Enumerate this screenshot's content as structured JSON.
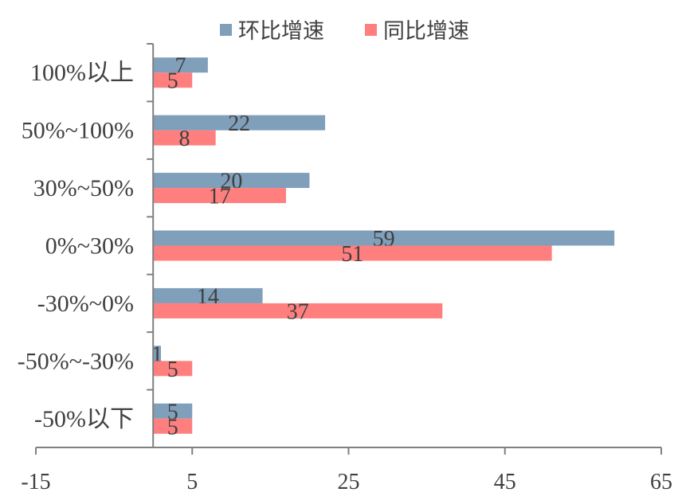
{
  "chart_data": {
    "type": "bar",
    "orientation": "horizontal",
    "categories": [
      "100%以上",
      "50%~100%",
      "30%~50%",
      "0%~30%",
      "-30%~0%",
      "-50%~-30%",
      "-50%以下"
    ],
    "series": [
      {
        "name": "环比增速",
        "values": [
          7,
          22,
          20,
          59,
          14,
          1,
          5
        ],
        "color": "#7f9fba"
      },
      {
        "name": "同比增速",
        "values": [
          5,
          8,
          17,
          51,
          37,
          5,
          5
        ],
        "color": "#ff7f7f"
      }
    ],
    "xlim": [
      -15,
      65
    ],
    "xticks": [
      "-15",
      "5",
      "25",
      "45",
      "65"
    ],
    "legend": "top",
    "grid": false
  }
}
